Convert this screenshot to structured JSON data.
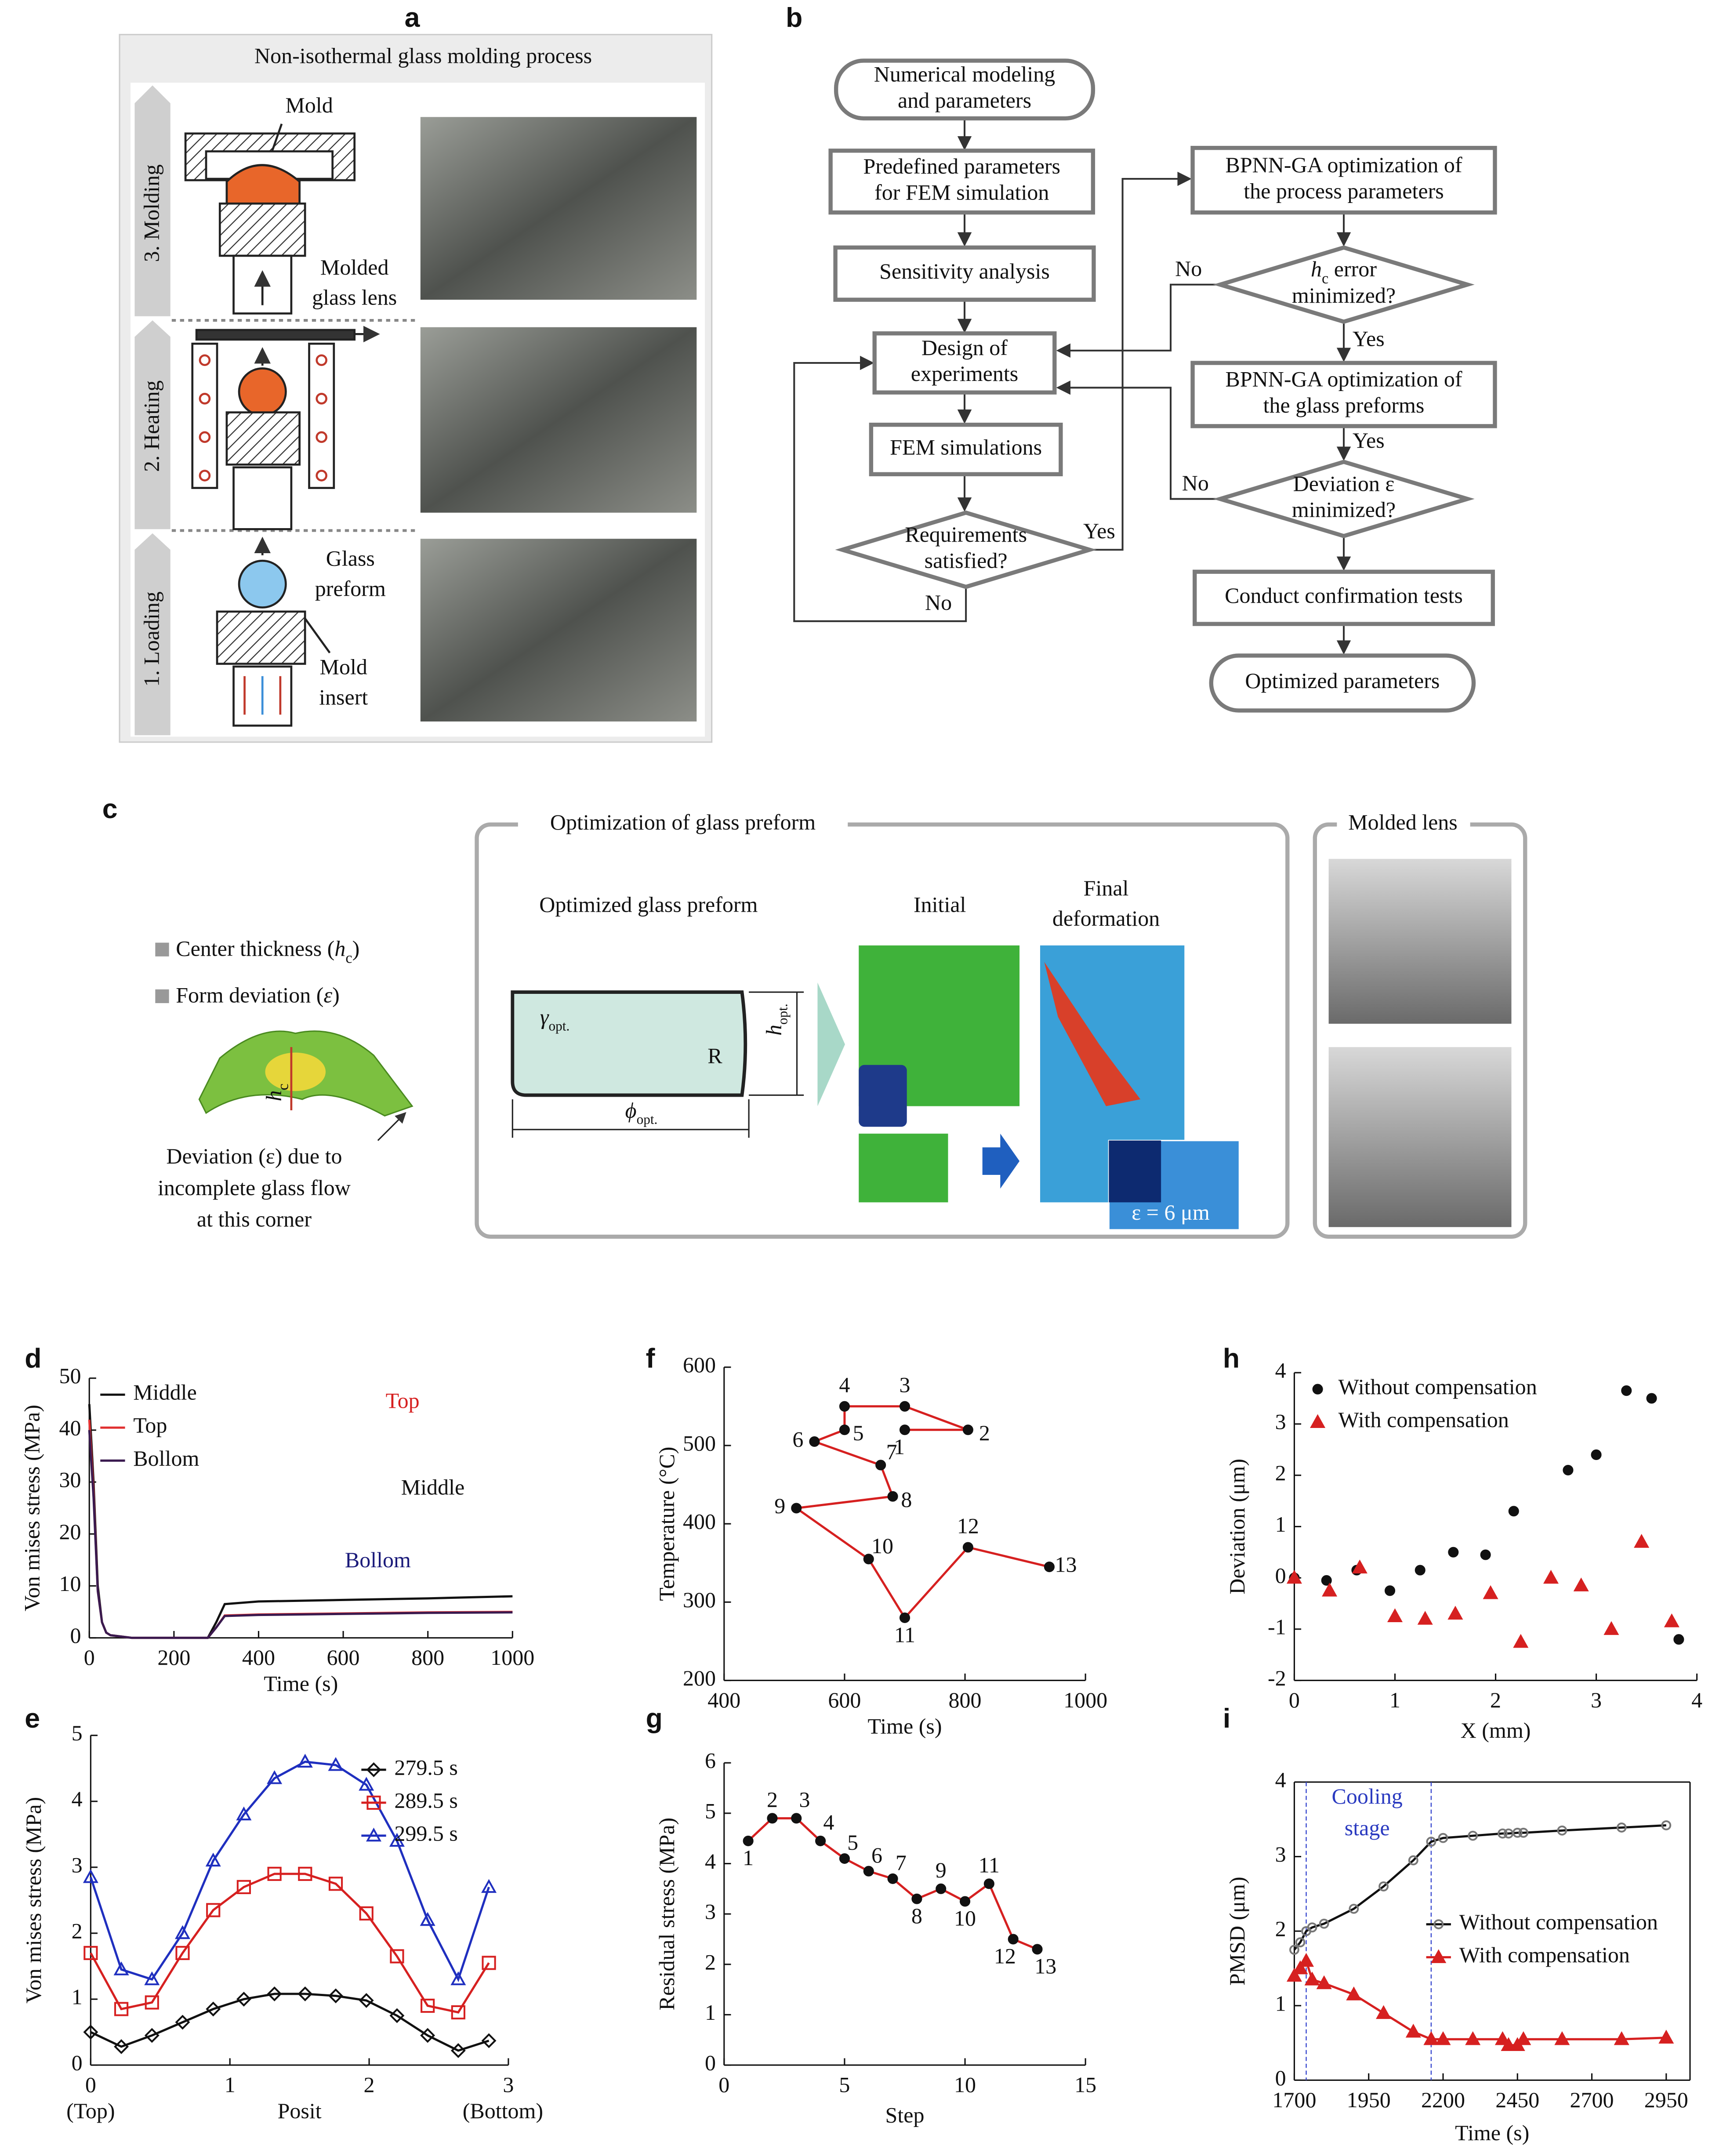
{
  "panels": {
    "a": {
      "label": "a",
      "title": "Non-isothermal glass molding process",
      "stages": [
        "3. Molding",
        "2. Heating",
        "1. Loading"
      ],
      "callouts": {
        "mold": "Mold",
        "molded_lens": [
          "Molded",
          "glass lens"
        ],
        "glass_preform": [
          "Glass",
          "preform"
        ],
        "mold_insert": [
          "Mold",
          "insert"
        ]
      }
    },
    "b": {
      "label": "b",
      "nodes": [
        {
          "lines": [
            "Numerical modeling",
            "and parameters"
          ]
        },
        {
          "lines": [
            "Predefined parameters",
            "for FEM simulation"
          ]
        },
        {
          "lines": [
            "Sensitivity analysis"
          ]
        },
        {
          "lines": [
            "Design of",
            "experiments"
          ]
        },
        {
          "lines": [
            "FEM simulations"
          ]
        },
        {
          "lines": [
            "Requirements",
            "satisfied?"
          ]
        },
        {
          "lines": [
            "BPNN-GA optimization of",
            "the process parameters"
          ]
        },
        {
          "symbol": "h",
          "subscript": "c",
          "lines": [
            "error",
            "minimized?"
          ]
        },
        {
          "lines": [
            "BPNN-GA optimization of",
            "the glass preforms"
          ]
        },
        {
          "lines": [
            "Deviation ε",
            "minimized?"
          ]
        },
        {
          "lines": [
            "Conduct confirmation tests"
          ]
        },
        {
          "lines": [
            "Optimized parameters"
          ]
        }
      ],
      "edge_labels": [
        "Yes",
        "No",
        "No",
        "Yes",
        "Yes",
        "No"
      ]
    },
    "c": {
      "label": "c",
      "legend": [
        [
          "Center thickness (",
          "h",
          "c",
          ")"
        ],
        [
          "Form deviation (",
          "ε",
          ")"
        ]
      ],
      "hc": [
        "h",
        "c"
      ],
      "deviation_note": [
        "Deviation (ε) due to",
        "incomplete glass flow",
        "at this corner"
      ],
      "optimization_title": "Optimization of glass preform",
      "preform_title": "Optimized glass preform",
      "gamma": [
        "γ",
        "opt."
      ],
      "radius": "R",
      "height": [
        "h",
        "opt."
      ],
      "diameter": [
        "ϕ",
        "opt."
      ],
      "initial": "Initial",
      "final": [
        "Final",
        "deformation"
      ],
      "epsilon": "ε = 6 μm",
      "molded_title": "Molded lens"
    }
  },
  "chart_data": [
    {
      "label": "d",
      "type": "line",
      "xlabel": "Time (s)",
      "ylabel": "Von mises stress (MPa)",
      "x": [
        0,
        10,
        20,
        30,
        40,
        50,
        100,
        200,
        280,
        300,
        320,
        400,
        600,
        800,
        1000
      ],
      "xlim": [
        0,
        1000
      ],
      "ylim": [
        0,
        50
      ],
      "xticks": [
        0,
        200,
        400,
        600,
        800,
        1000
      ],
      "yticks": [
        0,
        10,
        20,
        30,
        40,
        50
      ],
      "legend": "upper left",
      "series": [
        {
          "name": "Middle",
          "color": "#111111",
          "values": [
            45,
            30,
            10,
            3,
            1,
            0.5,
            0,
            0,
            0,
            3,
            6.5,
            7,
            7.3,
            7.6,
            8
          ]
        },
        {
          "name": "Top",
          "color": "#e03030",
          "values": [
            42,
            28,
            9,
            3,
            1,
            0.5,
            0,
            0,
            0,
            2,
            4.3,
            4.5,
            4.7,
            4.9,
            5
          ]
        },
        {
          "name": "Bollom",
          "color": "#3a1a50",
          "values": [
            40,
            27,
            9,
            3,
            1,
            0.5,
            0,
            0,
            0,
            2,
            4.2,
            4.4,
            4.6,
            4.8,
            4.9
          ]
        }
      ],
      "annotations": [
        "Top",
        "Middle",
        "Bollom"
      ]
    },
    {
      "label": "e",
      "type": "line",
      "xlabel": "Posit",
      "ylabel": "Von mises stress (MPa)",
      "x": [
        0,
        0.22,
        0.44,
        0.66,
        0.88,
        1.1,
        1.32,
        1.54,
        1.76,
        1.98,
        2.2,
        2.42,
        2.64,
        2.86
      ],
      "xlim": [
        0,
        3
      ],
      "ylim": [
        0,
        5
      ],
      "xticks": [
        0,
        1,
        2,
        3
      ],
      "yticks": [
        0,
        1,
        2,
        3,
        4,
        5
      ],
      "legend": "upper right",
      "series": [
        {
          "name": "279.5 s",
          "color": "#111111",
          "marker": "diamond",
          "marker_color": "#111111",
          "marker_open": true,
          "values": [
            0.5,
            0.28,
            0.45,
            0.65,
            0.85,
            1.0,
            1.08,
            1.08,
            1.05,
            0.98,
            0.75,
            0.45,
            0.22,
            0.37
          ]
        },
        {
          "name": "289.5 s",
          "color": "#d62020",
          "marker": "square",
          "marker_color": "#d62020",
          "marker_open": true,
          "values": [
            1.7,
            0.85,
            0.95,
            1.7,
            2.35,
            2.7,
            2.9,
            2.9,
            2.75,
            2.3,
            1.65,
            0.9,
            0.8,
            1.55
          ]
        },
        {
          "name": "299.5 s",
          "color": "#1f2fbf",
          "marker": "triangle",
          "marker_color": "#1f2fbf",
          "marker_open": true,
          "values": [
            2.85,
            1.45,
            1.3,
            2.0,
            3.1,
            3.8,
            4.35,
            4.6,
            4.55,
            4.25,
            3.4,
            2.2,
            1.3,
            2.7
          ]
        }
      ],
      "annotations": [
        "(Top)",
        "(Bottom)"
      ]
    },
    {
      "label": "f",
      "type": "line",
      "xlabel": "Time (s)",
      "ylabel": "Temperature (°C)",
      "x": [
        700,
        805,
        700,
        600,
        600,
        550,
        660,
        680,
        520,
        640,
        700,
        805,
        940
      ],
      "xlim": [
        400,
        1000
      ],
      "ylim": [
        200,
        600
      ],
      "xticks": [
        400,
        600,
        800,
        1000
      ],
      "yticks": [
        200,
        300,
        400,
        500,
        600
      ],
      "series": [
        {
          "color": "#d62020",
          "marker": "circle",
          "marker_color": "#111111",
          "values": [
            520,
            520,
            550,
            550,
            520,
            505,
            475,
            435,
            420,
            355,
            280,
            370,
            345
          ]
        }
      ],
      "point_labels": [
        "1",
        "2",
        "3",
        "4",
        "5",
        "6",
        "7",
        "8",
        "9",
        "10",
        "11",
        "12",
        "13"
      ]
    },
    {
      "label": "g",
      "type": "line",
      "xlabel": "Step",
      "ylabel": "Residual stress (MPa)",
      "x": [
        1,
        2,
        3,
        4,
        5,
        6,
        7,
        8,
        9,
        10,
        11,
        12,
        13
      ],
      "xlim": [
        0,
        15
      ],
      "ylim": [
        0,
        6
      ],
      "xticks": [
        0,
        5,
        10,
        15
      ],
      "yticks": [
        0,
        1,
        2,
        3,
        4,
        5,
        6
      ],
      "series": [
        {
          "color": "#d62020",
          "marker": "circle",
          "marker_color": "#111111",
          "values": [
            4.45,
            4.9,
            4.9,
            4.45,
            4.1,
            3.85,
            3.7,
            3.3,
            3.5,
            3.25,
            3.6,
            2.5,
            2.3
          ]
        }
      ]
    },
    {
      "label": "h",
      "type": "scatter",
      "xlabel": "X (mm)",
      "ylabel": "Deviation (μm)",
      "xlim": [
        0,
        4
      ],
      "ylim": [
        -2,
        4
      ],
      "xticks": [
        0,
        1,
        2,
        3,
        4
      ],
      "yticks": [
        -2,
        -1,
        0,
        1,
        2,
        3,
        4
      ],
      "legend": "upper left",
      "series": [
        {
          "name": "Without compensation",
          "color": "#111111",
          "marker": "circle",
          "marker_color": "#111111",
          "x": [
            0,
            0.32,
            0.62,
            0.95,
            1.25,
            1.58,
            1.9,
            2.18,
            2.72,
            3.0,
            3.3,
            3.55,
            3.82
          ],
          "values": [
            0,
            -0.05,
            0.15,
            -0.25,
            0.15,
            0.5,
            0.45,
            1.3,
            2.1,
            2.4,
            3.65,
            3.5,
            -1.2
          ]
        },
        {
          "name": "With compensation",
          "color": "#d62020",
          "marker": "triangle",
          "marker_color": "#d62020",
          "x": [
            0,
            0.35,
            0.65,
            1.0,
            1.3,
            1.6,
            1.95,
            2.25,
            2.55,
            2.85,
            3.15,
            3.45,
            3.75
          ],
          "values": [
            0,
            -0.25,
            0.2,
            -0.75,
            -0.8,
            -0.7,
            -0.3,
            -1.25,
            0.0,
            -0.15,
            -1.0,
            0.7,
            -0.85
          ]
        }
      ]
    },
    {
      "label": "i",
      "type": "line",
      "xlabel": "Time (s)",
      "ylabel": "PMSD (μm)",
      "frame": true,
      "x": [
        1700,
        1720,
        1740,
        1760,
        1800,
        1900,
        2000,
        2100,
        2160,
        2200,
        2300,
        2400,
        2420,
        2450,
        2470,
        2600,
        2800,
        2950
      ],
      "xlim": [
        1700,
        3030
      ],
      "ylim": [
        0,
        4
      ],
      "xticks": [
        1700,
        1950,
        2200,
        2450,
        2700,
        2950
      ],
      "yticks": [
        0,
        1,
        2,
        3,
        4
      ],
      "legend": "center right",
      "series": [
        {
          "name": "Without compensation",
          "color": "#111111",
          "marker": "circle",
          "marker_color": "#777777",
          "marker_open": true,
          "values": [
            1.75,
            1.85,
            2.0,
            2.05,
            2.1,
            2.3,
            2.6,
            2.95,
            3.2,
            3.25,
            3.28,
            3.31,
            3.31,
            3.32,
            3.32,
            3.35,
            3.39,
            3.42
          ]
        },
        {
          "name": "With compensation",
          "color": "#d62020",
          "marker": "triangle",
          "marker_color": "#d62020",
          "values": [
            1.4,
            1.5,
            1.6,
            1.35,
            1.3,
            1.15,
            0.9,
            0.65,
            0.55,
            0.55,
            0.55,
            0.55,
            0.47,
            0.47,
            0.55,
            0.55,
            0.55,
            0.57
          ]
        }
      ],
      "vlines": [
        1740,
        2160
      ],
      "annotations": [
        "Cooling",
        "stage"
      ]
    }
  ]
}
